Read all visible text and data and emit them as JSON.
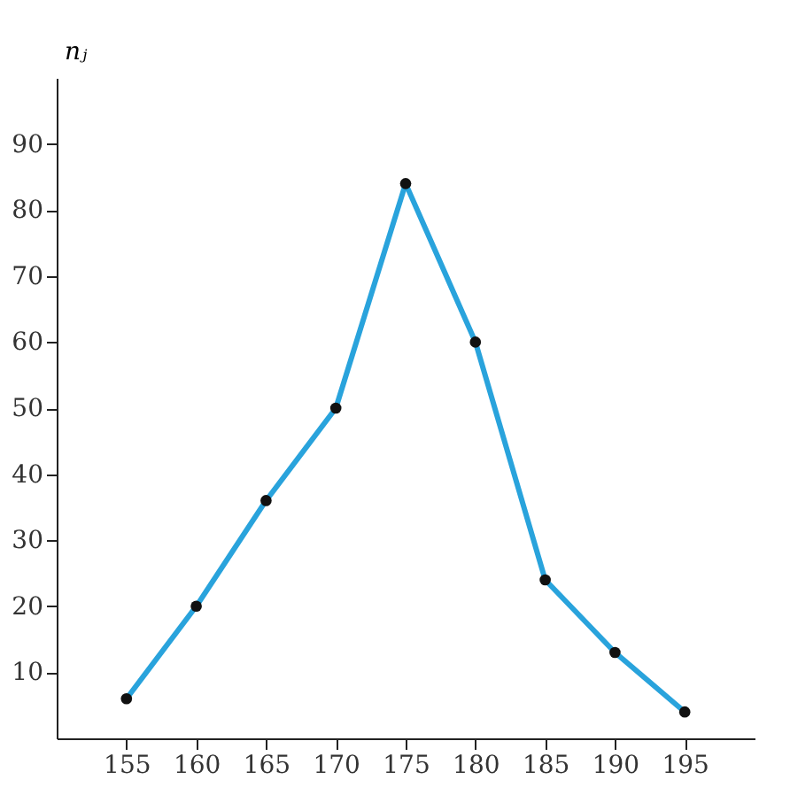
{
  "chart_data": {
    "type": "line",
    "ylabel": "nⱼ",
    "x": [
      155,
      160,
      165,
      170,
      175,
      180,
      185,
      190,
      195
    ],
    "series": [
      {
        "color": "#29a3dc",
        "values": [
          6,
          20,
          36,
          50,
          84,
          60,
          24,
          13,
          4
        ]
      }
    ],
    "xlim": [
      150,
      200
    ],
    "xticks": [
      155,
      160,
      165,
      170,
      175,
      180,
      185,
      190,
      195
    ],
    "ylim": [
      0,
      100
    ],
    "yticks": [
      10,
      20,
      30,
      40,
      50,
      60,
      70,
      80,
      90
    ],
    "grid": false,
    "legend": false,
    "marker": "circle",
    "line_style": "solid"
  }
}
